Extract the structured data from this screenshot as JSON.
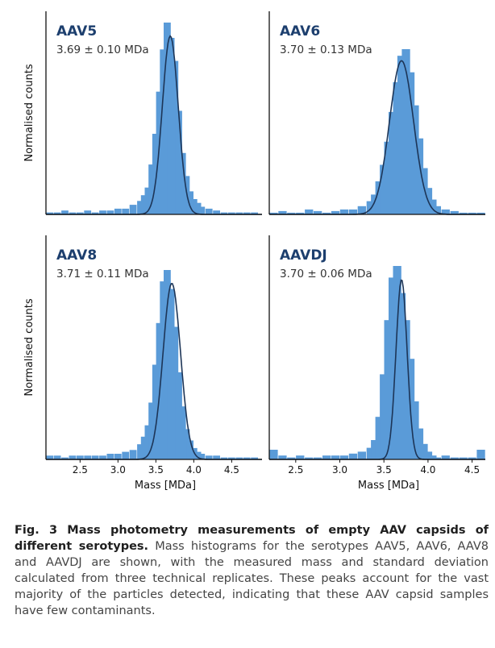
{
  "colors": {
    "bar": "#5a9bd8",
    "fit": "#1d3557",
    "axis": "#111111",
    "title": "#1d3f6e"
  },
  "figure": {
    "ylabel": "Normalised counts",
    "xlabel": "Mass [MDa]"
  },
  "chart_data": [
    {
      "type": "bar",
      "title": "AAV5",
      "subtitle": "3.69 ± 0.10 MDa",
      "mean": 3.69,
      "sd": 0.1,
      "xlim": [
        2.05,
        4.9
      ],
      "xticks": [],
      "ylabel": "Normalised counts",
      "xlabel": "",
      "bins": [
        2.1,
        2.2,
        2.3,
        2.4,
        2.5,
        2.6,
        2.7,
        2.8,
        2.9,
        3.0,
        3.1,
        3.2,
        3.3,
        3.35,
        3.4,
        3.45,
        3.5,
        3.55,
        3.6,
        3.65,
        3.7,
        3.75,
        3.8,
        3.85,
        3.9,
        3.95,
        4.0,
        4.05,
        4.1,
        4.2,
        4.3,
        4.4,
        4.5,
        4.6,
        4.7,
        4.8
      ],
      "values": [
        0.01,
        0.01,
        0.02,
        0.01,
        0.01,
        0.02,
        0.01,
        0.02,
        0.02,
        0.03,
        0.03,
        0.05,
        0.07,
        0.1,
        0.14,
        0.26,
        0.42,
        0.64,
        0.86,
        1.0,
        0.92,
        0.8,
        0.54,
        0.32,
        0.2,
        0.12,
        0.08,
        0.06,
        0.04,
        0.03,
        0.02,
        0.01,
        0.01,
        0.01,
        0.01,
        0.01
      ]
    },
    {
      "type": "bar",
      "title": "AAV6",
      "subtitle": "3.70 ± 0.13 MDa",
      "mean": 3.7,
      "sd": 0.13,
      "xlim": [
        2.2,
        4.65
      ],
      "xticks": [],
      "ylabel": "",
      "xlabel": "",
      "bins": [
        2.25,
        2.35,
        2.45,
        2.55,
        2.65,
        2.75,
        2.85,
        2.95,
        3.05,
        3.15,
        3.25,
        3.35,
        3.4,
        3.45,
        3.5,
        3.55,
        3.6,
        3.65,
        3.7,
        3.75,
        3.8,
        3.85,
        3.9,
        3.95,
        4.0,
        4.05,
        4.1,
        4.2,
        4.3,
        4.4,
        4.5,
        4.6
      ],
      "values": [
        0.01,
        0.02,
        0.01,
        0.01,
        0.03,
        0.02,
        0.01,
        0.02,
        0.03,
        0.03,
        0.05,
        0.08,
        0.12,
        0.2,
        0.3,
        0.44,
        0.62,
        0.8,
        0.96,
        1.0,
        0.86,
        0.66,
        0.46,
        0.28,
        0.16,
        0.09,
        0.05,
        0.03,
        0.02,
        0.01,
        0.01,
        0.01
      ]
    },
    {
      "type": "bar",
      "title": "AAV8",
      "subtitle": "3.71 ± 0.11 MDa",
      "mean": 3.71,
      "sd": 0.11,
      "xlim": [
        2.05,
        4.9
      ],
      "xticks": [
        2.5,
        3.0,
        3.5,
        4.0,
        4.5
      ],
      "ylabel": "Normalised counts",
      "xlabel": "Mass [MDa]",
      "bins": [
        2.1,
        2.2,
        2.3,
        2.4,
        2.5,
        2.6,
        2.7,
        2.8,
        2.9,
        3.0,
        3.1,
        3.2,
        3.3,
        3.35,
        3.4,
        3.45,
        3.5,
        3.55,
        3.6,
        3.65,
        3.7,
        3.75,
        3.8,
        3.85,
        3.9,
        3.95,
        4.0,
        4.05,
        4.1,
        4.2,
        4.3,
        4.4,
        4.5,
        4.6,
        4.7,
        4.8
      ],
      "values": [
        0.02,
        0.02,
        0.01,
        0.02,
        0.02,
        0.02,
        0.02,
        0.02,
        0.03,
        0.03,
        0.04,
        0.05,
        0.08,
        0.12,
        0.18,
        0.3,
        0.5,
        0.72,
        0.94,
        1.0,
        0.9,
        0.7,
        0.46,
        0.28,
        0.16,
        0.1,
        0.06,
        0.04,
        0.03,
        0.02,
        0.02,
        0.01,
        0.01,
        0.01,
        0.01,
        0.01
      ]
    },
    {
      "type": "bar",
      "title": "AAVDJ",
      "subtitle": "3.70 ± 0.06 MDa",
      "mean": 3.7,
      "sd": 0.06,
      "xlim": [
        2.2,
        4.65
      ],
      "xticks": [
        2.5,
        3.0,
        3.5,
        4.0,
        4.5
      ],
      "ylabel": "",
      "xlabel": "Mass [MDa]",
      "bins": [
        2.25,
        2.35,
        2.45,
        2.55,
        2.65,
        2.75,
        2.85,
        2.95,
        3.05,
        3.15,
        3.25,
        3.35,
        3.4,
        3.45,
        3.5,
        3.55,
        3.6,
        3.65,
        3.7,
        3.75,
        3.8,
        3.85,
        3.9,
        3.95,
        4.0,
        4.05,
        4.1,
        4.2,
        4.3,
        4.4,
        4.5,
        4.6
      ],
      "values": [
        0.05,
        0.02,
        0.01,
        0.02,
        0.01,
        0.01,
        0.02,
        0.02,
        0.02,
        0.03,
        0.04,
        0.06,
        0.1,
        0.22,
        0.44,
        0.72,
        0.94,
        1.0,
        0.86,
        0.72,
        0.52,
        0.3,
        0.16,
        0.08,
        0.04,
        0.02,
        0.01,
        0.02,
        0.01,
        0.01,
        0.01,
        0.05
      ]
    }
  ],
  "caption": {
    "figure_label": "Fig. 3 Mass photometry measurements of empty AAV capsids of different serotypes.",
    "body": " Mass histograms for the serotypes AAV5, AAV6, AAV8 and AAVDJ are shown, with the measured mass and standard deviation calculated from three technical replicates. These peaks account for the vast majority of the particles detected, indicating that these AAV capsid samples have few contaminants."
  }
}
